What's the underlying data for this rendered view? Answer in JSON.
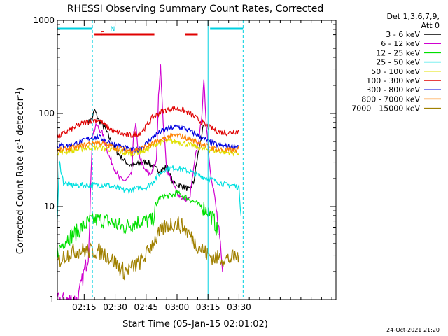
{
  "chart_data": {
    "type": "line",
    "title": "RHESSI Observing Summary Count Rates, Corrected",
    "xlabel": "Start Time (05-Jan-15 02:01:02)",
    "ylabel": "Corrected Count Rate (s",
    "ylabel_sup1": "-1",
    "ylabel_mid": " detector",
    "ylabel_sup2": "-1",
    "ylabel_end": ")",
    "y_scale": "log",
    "ylim": [
      1,
      1000
    ],
    "y_ticks": [
      {
        "value": 1,
        "label": "1"
      },
      {
        "value": 10,
        "label": "10"
      },
      {
        "value": 100,
        "label": "100"
      },
      {
        "value": 1000,
        "label": "1000"
      }
    ],
    "x_range_minutes": [
      2.0,
      137.0
    ],
    "x_ticks": [
      {
        "t": 15,
        "label": "02:15"
      },
      {
        "t": 30,
        "label": "02:30"
      },
      {
        "t": 45,
        "label": "02:45"
      },
      {
        "t": 60,
        "label": "03:00"
      },
      {
        "t": 75,
        "label": "03:15"
      },
      {
        "t": 90,
        "label": "03:30"
      }
    ],
    "legend_placement": "right",
    "legend_header": [
      "Det 1,3,6,7,9,",
      "Att 0"
    ],
    "annotations": {
      "night_label": "N",
      "flare_label": "F",
      "timestamp": "24-Oct-2021 21:20"
    },
    "night_bars": [
      [
        2,
        19
      ],
      [
        76,
        92
      ]
    ],
    "flare_bars": [
      [
        20,
        49
      ],
      [
        64,
        70
      ]
    ],
    "dashed_vlines": [
      19,
      92
    ],
    "solid_vlines": [
      75
    ],
    "series": [
      {
        "name": "3 - 6 keV",
        "color": "#000000",
        "points": [
          [
            17,
            80
          ],
          [
            19,
            90
          ],
          [
            20,
            110
          ],
          [
            22,
            85
          ],
          [
            25,
            70
          ],
          [
            28,
            50
          ],
          [
            31,
            38
          ],
          [
            34,
            32
          ],
          [
            37,
            28
          ],
          [
            40,
            28
          ],
          [
            43,
            30
          ],
          [
            46,
            30
          ],
          [
            49,
            26
          ],
          [
            52,
            24
          ],
          [
            55,
            27
          ],
          [
            58,
            18
          ],
          [
            61,
            17
          ],
          [
            64,
            16
          ],
          [
            66,
            15
          ],
          [
            68,
            18
          ],
          [
            70,
            35
          ],
          [
            72,
            60
          ],
          [
            73,
            75
          ]
        ]
      },
      {
        "name": "6 - 12 keV",
        "color": "#d000d0",
        "points": [
          [
            2,
            1
          ],
          [
            5,
            1
          ],
          [
            8,
            1
          ],
          [
            12,
            1
          ],
          [
            15,
            2
          ],
          [
            17,
            3
          ],
          [
            19,
            60
          ],
          [
            21,
            75
          ],
          [
            24,
            60
          ],
          [
            27,
            35
          ],
          [
            30,
            25
          ],
          [
            32,
            20
          ],
          [
            35,
            19
          ],
          [
            38,
            22
          ],
          [
            39,
            60
          ],
          [
            40,
            80
          ],
          [
            41,
            40
          ],
          [
            44,
            25
          ],
          [
            47,
            22
          ],
          [
            50,
            30
          ],
          [
            51,
            150
          ],
          [
            52,
            340
          ],
          [
            53,
            100
          ],
          [
            55,
            25
          ],
          [
            57,
            20
          ],
          [
            60,
            14
          ],
          [
            63,
            12
          ],
          [
            66,
            12
          ],
          [
            69,
            35
          ],
          [
            71,
            60
          ],
          [
            72,
            100
          ],
          [
            73,
            220
          ],
          [
            74,
            90
          ],
          [
            76,
            25
          ],
          [
            78,
            14
          ],
          [
            80,
            6
          ],
          [
            82,
            2
          ]
        ]
      },
      {
        "name": "12 - 25 keV",
        "color": "#00e000",
        "points": [
          [
            2,
            3.2
          ],
          [
            6,
            4.5
          ],
          [
            10,
            5
          ],
          [
            14,
            6
          ],
          [
            18,
            7
          ],
          [
            22,
            7.2
          ],
          [
            26,
            7
          ],
          [
            30,
            6.5
          ],
          [
            34,
            6
          ],
          [
            38,
            6.5
          ],
          [
            42,
            7
          ],
          [
            45,
            7
          ],
          [
            48,
            7
          ],
          [
            51,
            12
          ],
          [
            54,
            13
          ],
          [
            57,
            13
          ],
          [
            60,
            14
          ],
          [
            63,
            13
          ],
          [
            66,
            12
          ],
          [
            69,
            11
          ],
          [
            72,
            10
          ],
          [
            75,
            9
          ],
          [
            78,
            7
          ],
          [
            80,
            5
          ]
        ]
      },
      {
        "name": "25 - 50 keV",
        "color": "#00e0e0",
        "points": [
          [
            2,
            8
          ],
          [
            3,
            30
          ],
          [
            5,
            18
          ],
          [
            8,
            17
          ],
          [
            12,
            17
          ],
          [
            16,
            17
          ],
          [
            19,
            17
          ],
          [
            22,
            17
          ],
          [
            26,
            17
          ],
          [
            30,
            16
          ],
          [
            34,
            15
          ],
          [
            38,
            15
          ],
          [
            42,
            16
          ],
          [
            45,
            16
          ],
          [
            48,
            18
          ],
          [
            51,
            22
          ],
          [
            54,
            25
          ],
          [
            57,
            26
          ],
          [
            60,
            26
          ],
          [
            63,
            25
          ],
          [
            66,
            24
          ],
          [
            69,
            22
          ],
          [
            72,
            21
          ],
          [
            75,
            20
          ],
          [
            78,
            19
          ],
          [
            81,
            18
          ],
          [
            84,
            17
          ],
          [
            87,
            17
          ],
          [
            90,
            16
          ],
          [
            91,
            8
          ]
        ]
      },
      {
        "name": "50 - 100 keV",
        "color": "#e0e000",
        "points": [
          [
            2,
            38
          ],
          [
            6,
            39
          ],
          [
            10,
            40
          ],
          [
            14,
            42
          ],
          [
            18,
            43
          ],
          [
            22,
            43
          ],
          [
            26,
            42
          ],
          [
            30,
            40
          ],
          [
            34,
            38
          ],
          [
            38,
            37
          ],
          [
            42,
            39
          ],
          [
            45,
            40
          ],
          [
            48,
            45
          ],
          [
            51,
            48
          ],
          [
            54,
            50
          ],
          [
            57,
            50
          ],
          [
            60,
            50
          ],
          [
            63,
            48
          ],
          [
            66,
            46
          ],
          [
            69,
            44
          ],
          [
            72,
            42
          ],
          [
            75,
            41
          ],
          [
            78,
            40
          ],
          [
            81,
            39
          ],
          [
            84,
            38
          ],
          [
            87,
            38
          ],
          [
            90,
            38
          ]
        ]
      },
      {
        "name": "100 - 300 keV",
        "color": "#e00000",
        "points": [
          [
            2,
            55
          ],
          [
            6,
            63
          ],
          [
            10,
            70
          ],
          [
            14,
            78
          ],
          [
            18,
            84
          ],
          [
            22,
            85
          ],
          [
            26,
            72
          ],
          [
            30,
            63
          ],
          [
            34,
            60
          ],
          [
            38,
            58
          ],
          [
            42,
            62
          ],
          [
            45,
            72
          ],
          [
            48,
            90
          ],
          [
            51,
            100
          ],
          [
            54,
            108
          ],
          [
            57,
            112
          ],
          [
            60,
            113
          ],
          [
            63,
            108
          ],
          [
            66,
            100
          ],
          [
            69,
            90
          ],
          [
            72,
            80
          ],
          [
            75,
            72
          ],
          [
            78,
            67
          ],
          [
            81,
            63
          ],
          [
            84,
            62
          ],
          [
            87,
            63
          ],
          [
            90,
            65
          ]
        ]
      },
      {
        "name": "300 - 800 keV",
        "color": "#0000e0",
        "points": [
          [
            2,
            45
          ],
          [
            6,
            45
          ],
          [
            10,
            47
          ],
          [
            14,
            50
          ],
          [
            18,
            55
          ],
          [
            22,
            56
          ],
          [
            26,
            50
          ],
          [
            30,
            46
          ],
          [
            34,
            43
          ],
          [
            38,
            40
          ],
          [
            42,
            42
          ],
          [
            45,
            47
          ],
          [
            48,
            55
          ],
          [
            51,
            62
          ],
          [
            54,
            67
          ],
          [
            57,
            70
          ],
          [
            60,
            72
          ],
          [
            63,
            70
          ],
          [
            66,
            65
          ],
          [
            69,
            60
          ],
          [
            72,
            55
          ],
          [
            75,
            50
          ],
          [
            78,
            47
          ],
          [
            81,
            45
          ],
          [
            84,
            44
          ],
          [
            87,
            44
          ],
          [
            90,
            45
          ]
        ]
      },
      {
        "name": "800 - 7000 keV",
        "color": "#ff8000",
        "points": [
          [
            2,
            40
          ],
          [
            6,
            41
          ],
          [
            10,
            43
          ],
          [
            14,
            45
          ],
          [
            18,
            48
          ],
          [
            22,
            49
          ],
          [
            26,
            46
          ],
          [
            30,
            43
          ],
          [
            34,
            41
          ],
          [
            38,
            40
          ],
          [
            42,
            42
          ],
          [
            45,
            44
          ],
          [
            48,
            47
          ],
          [
            51,
            50
          ],
          [
            54,
            54
          ],
          [
            57,
            57
          ],
          [
            60,
            58
          ],
          [
            63,
            56
          ],
          [
            66,
            53
          ],
          [
            69,
            50
          ],
          [
            72,
            47
          ],
          [
            75,
            44
          ],
          [
            78,
            42
          ],
          [
            81,
            41
          ],
          [
            84,
            40
          ],
          [
            87,
            40
          ],
          [
            90,
            41
          ]
        ]
      },
      {
        "name": "7000 - 15000 keV",
        "color": "#a08000",
        "points": [
          [
            2,
            2.5
          ],
          [
            6,
            3
          ],
          [
            10,
            3.3
          ],
          [
            14,
            3.4
          ],
          [
            18,
            3.3
          ],
          [
            22,
            3.3
          ],
          [
            26,
            3
          ],
          [
            30,
            2.5
          ],
          [
            34,
            2
          ],
          [
            38,
            2.2
          ],
          [
            42,
            2.5
          ],
          [
            45,
            3
          ],
          [
            48,
            4
          ],
          [
            51,
            5
          ],
          [
            54,
            6
          ],
          [
            57,
            6.5
          ],
          [
            60,
            6.5
          ],
          [
            63,
            6
          ],
          [
            66,
            5
          ],
          [
            69,
            4
          ],
          [
            72,
            3.5
          ],
          [
            75,
            3
          ],
          [
            78,
            2.8
          ],
          [
            81,
            2.8
          ],
          [
            84,
            2.7
          ],
          [
            87,
            2.8
          ],
          [
            90,
            3
          ]
        ]
      }
    ]
  }
}
